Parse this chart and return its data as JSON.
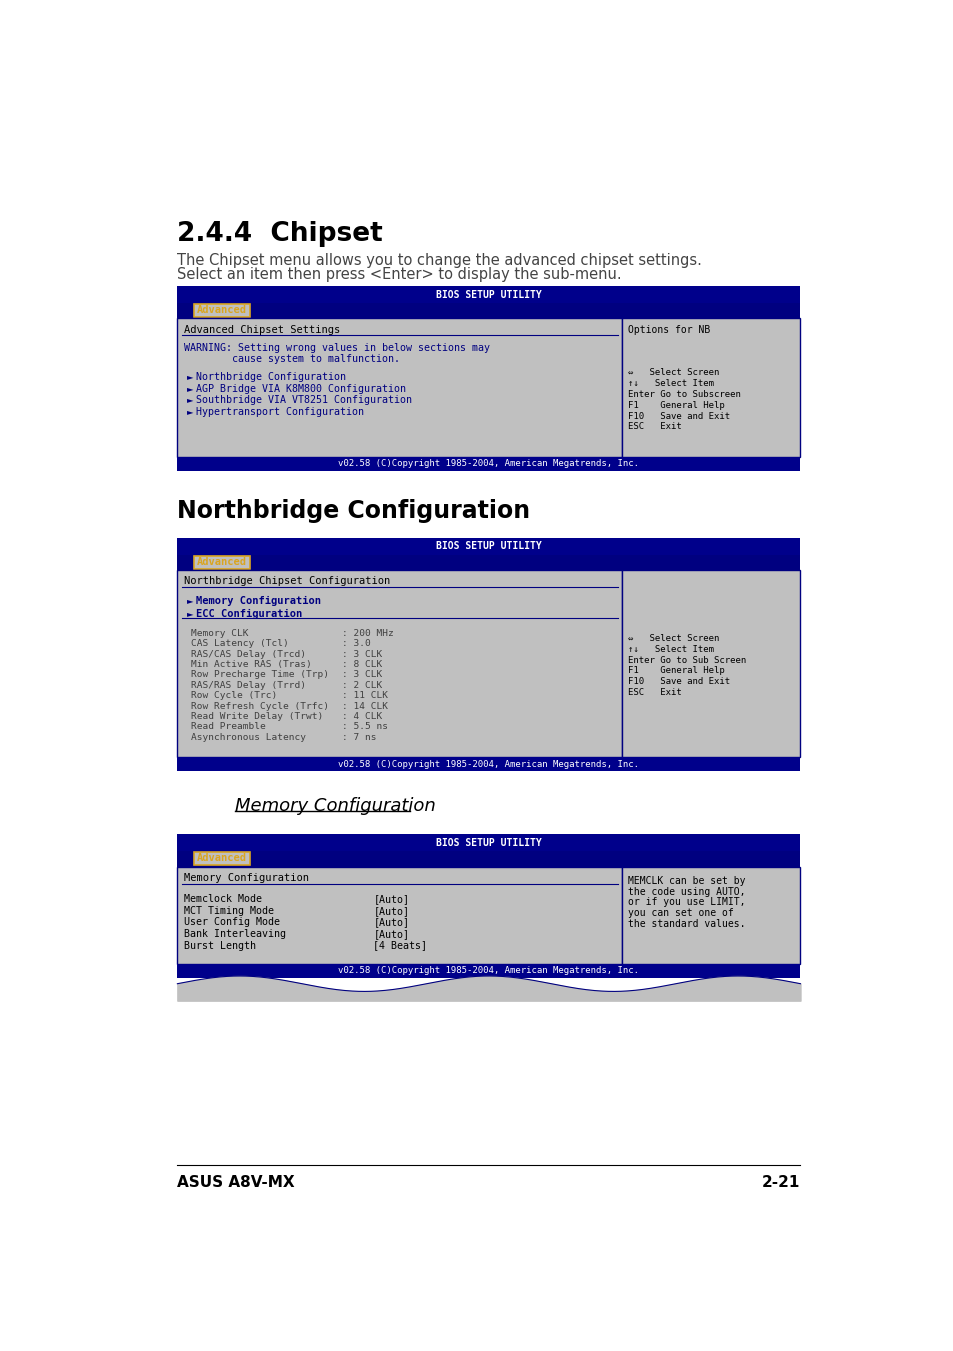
{
  "bg_color": "#ffffff",
  "navy": "#000080",
  "bios_bg": "#C0C0C0",
  "bios_header_bg": "#00008B",
  "section_title1": "2.4.4  Chipset",
  "section_desc1_line1": "The Chipset menu allows you to change the advanced chipset settings.",
  "section_desc1_line2": "Select an item then press <Enter> to display the sub-menu.",
  "bios1_header": "BIOS SETUP UTILITY",
  "bios1_tab": "Advanced",
  "bios1_left_title": "Advanced Chipset Settings",
  "bios1_warning_line1": "WARNING: Setting wrong values in below sections may",
  "bios1_warning_line2": "        cause system to malfunction.",
  "bios1_items": [
    "Northbridge Configuration",
    "AGP Bridge VIA K8M800 Configuration",
    "Southbridge VIA VT8251 Configuration",
    "Hypertransport Configuration"
  ],
  "bios1_right_title": "Options for NB",
  "bios1_nav": [
    "⇔   Select Screen",
    "↑↓   Select Item",
    "Enter Go to Subscreen",
    "F1    General Help",
    "F10   Save and Exit",
    "ESC   Exit"
  ],
  "bios1_footer": "v02.58 (C)Copyright 1985-2004, American Megatrends, Inc.",
  "section_title2": "Northbridge Configuration",
  "bios2_header": "BIOS SETUP UTILITY",
  "bios2_tab": "Advanced",
  "bios2_left_title": "Northbridge Chipset Configuration",
  "bios2_menu_items": [
    "Memory Configuration",
    "ECC Configuration"
  ],
  "bios2_params": [
    [
      "Memory CLK",
      ": 200 MHz"
    ],
    [
      "CAS Latency (Tcl)",
      ": 3.0"
    ],
    [
      "RAS/CAS Delay (Trcd)",
      ": 3 CLK"
    ],
    [
      "Min Active RAS (Tras)",
      ": 8 CLK"
    ],
    [
      "Row Precharge Time (Trp)",
      ": 3 CLK"
    ],
    [
      "RAS/RAS Delay (Trrd)",
      ": 2 CLK"
    ],
    [
      "Row Cycle (Trc)",
      ": 11 CLK"
    ],
    [
      "Row Refresh Cycle (Trfc)",
      ": 14 CLK"
    ],
    [
      "Read Write Delay (Trwt)",
      ": 4 CLK"
    ],
    [
      "Read Preamble",
      ": 5.5 ns"
    ],
    [
      "Asynchronous Latency",
      ": 7 ns"
    ]
  ],
  "bios2_nav": [
    "⇔   Select Screen",
    "↑↓   Select Item",
    "Enter Go to Sub Screen",
    "F1    General Help",
    "F10   Save and Exit",
    "ESC   Exit"
  ],
  "bios2_footer": "v02.58 (C)Copyright 1985-2004, American Megatrends, Inc.",
  "section_title3": "Memory Configuration",
  "bios3_header": "BIOS SETUP UTILITY",
  "bios3_tab": "Advanced",
  "bios3_left_title": "Memory Configuration",
  "bios3_params": [
    [
      "Memclock Mode",
      "[Auto]"
    ],
    [
      "MCT Timing Mode",
      "[Auto]"
    ],
    [
      "User Config Mode",
      "[Auto]"
    ],
    [
      "Bank Interleaving",
      "[Auto]"
    ],
    [
      "Burst Length",
      "[4 Beats]"
    ]
  ],
  "bios3_right_lines": [
    "MEMCLK can be set by",
    "the code using AUTO,",
    "or if you use LIMIT,",
    "you can set one of",
    "the standard values."
  ],
  "bios3_footer": "v02.58 (C)Copyright 1985-2004, American Megatrends, Inc.",
  "footer_left": "ASUS A8V-MX",
  "footer_right": "2-21",
  "tab_color": "#DAA520"
}
